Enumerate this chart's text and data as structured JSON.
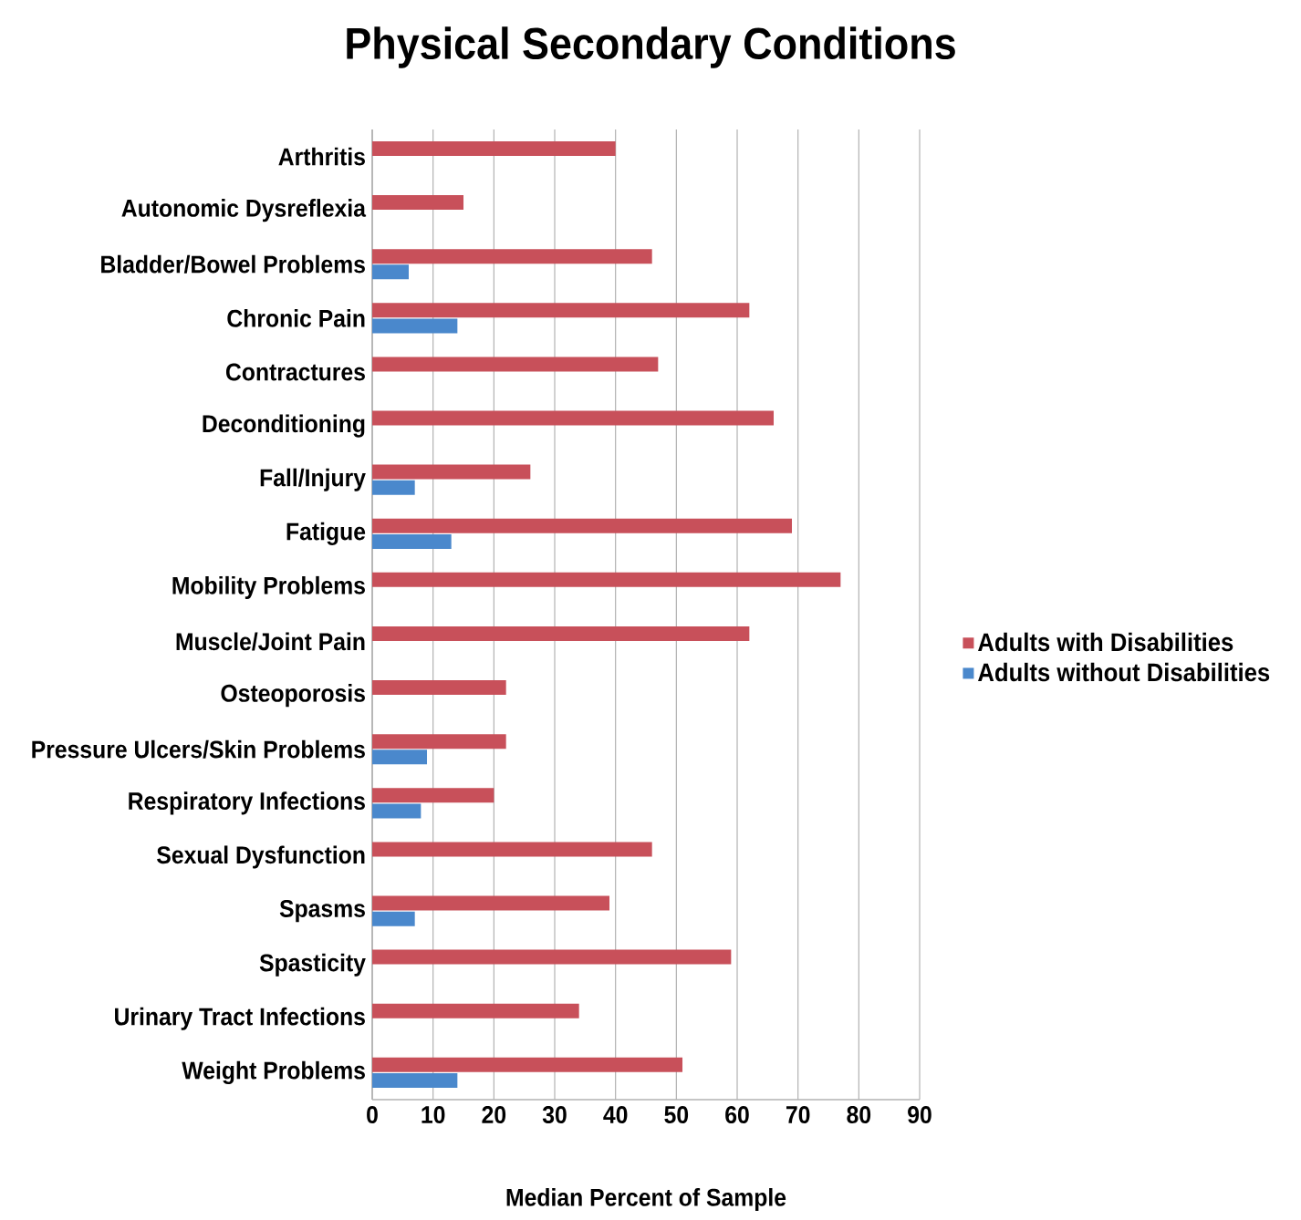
{
  "chart_data": {
    "type": "bar",
    "orientation": "horizontal",
    "title": "Physical Secondary Conditions",
    "xlabel": "Median Percent of Sample",
    "categories": [
      "Arthritis",
      "Autonomic Dysreflexia",
      "Bladder/Bowel Problems",
      "Chronic Pain",
      "Contractures",
      "Deconditioning",
      "Fall/Injury",
      "Fatigue",
      "Mobility Problems",
      "Muscle/Joint Pain",
      "Osteoporosis",
      "Pressure Ulcers/Skin Problems",
      "Respiratory Infections",
      "Sexual Dysfunction",
      "Spasms",
      "Spasticity",
      "Urinary Tract Infections",
      "Weight Problems"
    ],
    "series": [
      {
        "name": "Adults with Disabilities",
        "color": "#c8505a",
        "values": [
          40,
          15,
          46,
          62,
          47,
          66,
          26,
          69,
          77,
          62,
          22,
          22,
          20,
          46,
          39,
          59,
          34,
          51
        ]
      },
      {
        "name": "Adults without Disabilities",
        "color": "#4a88cc",
        "values": [
          null,
          null,
          6,
          14,
          null,
          null,
          7,
          13,
          null,
          null,
          null,
          9,
          8,
          null,
          7,
          null,
          null,
          14
        ]
      }
    ],
    "xlim": [
      0,
      90
    ],
    "xticks": [
      0,
      10,
      20,
      30,
      40,
      50,
      60,
      70,
      80,
      90
    ],
    "grid": "x",
    "legend": "right"
  }
}
